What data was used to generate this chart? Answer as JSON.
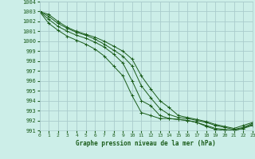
{
  "title": "Graphe pression niveau de la mer (hPa)",
  "bg_color": "#cceee8",
  "grid_color": "#aacccc",
  "line_color": "#1a5c1a",
  "xlim": [
    0,
    23
  ],
  "ylim": [
    991,
    1004
  ],
  "xticks": [
    0,
    1,
    2,
    3,
    4,
    5,
    6,
    7,
    8,
    9,
    10,
    11,
    12,
    13,
    14,
    15,
    16,
    17,
    18,
    19,
    20,
    21,
    22,
    23
  ],
  "yticks": [
    991,
    992,
    993,
    994,
    995,
    996,
    997,
    998,
    999,
    1000,
    1001,
    1002,
    1003,
    1004
  ],
  "series": [
    [
      1003.0,
      1002.7,
      1002.0,
      1001.4,
      1001.0,
      1000.7,
      1000.4,
      1000.0,
      999.5,
      999.0,
      998.2,
      996.5,
      995.2,
      994.0,
      993.3,
      992.5,
      992.3,
      992.1,
      991.9,
      991.6,
      991.4,
      991.2,
      991.5,
      991.8
    ],
    [
      1003.0,
      1002.5,
      1001.8,
      1001.3,
      1000.9,
      1000.6,
      1000.2,
      999.7,
      999.1,
      998.5,
      997.5,
      995.5,
      994.3,
      993.2,
      992.6,
      992.3,
      992.2,
      992.0,
      991.8,
      991.5,
      991.3,
      991.1,
      991.3,
      991.7
    ],
    [
      1003.0,
      1002.2,
      1001.5,
      1001.0,
      1000.6,
      1000.3,
      999.9,
      999.4,
      998.7,
      997.8,
      996.0,
      994.0,
      993.5,
      992.5,
      992.2,
      992.1,
      992.0,
      991.8,
      991.5,
      991.2,
      991.1,
      991.0,
      991.2,
      991.6
    ],
    [
      1003.0,
      1001.8,
      1001.1,
      1000.5,
      1000.1,
      999.7,
      999.2,
      998.5,
      997.5,
      996.5,
      994.5,
      992.8,
      992.5,
      992.2,
      992.2,
      992.1,
      992.0,
      991.8,
      991.4,
      991.1,
      991.0,
      991.0,
      991.2,
      991.5
    ]
  ]
}
